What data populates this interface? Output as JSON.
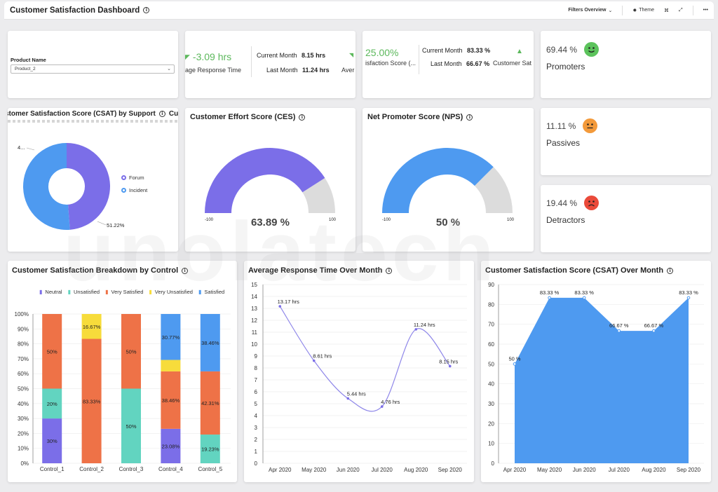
{
  "header": {
    "title": "Customer Satisfaction Dashboard",
    "filters_label": "Filters Overview",
    "theme_label": "Theme",
    "view_label": "⌘",
    "more_label": "•••"
  },
  "product": {
    "label": "Product Name",
    "value": "Product_2"
  },
  "kpi_response": {
    "change": "-3.09 hrs",
    "label": "age Response Time",
    "current_label": "Current Month",
    "current_value": "8.15 hrs",
    "last_label": "Last Month",
    "last_value": "11.24 hrs",
    "cut_label": "Aver"
  },
  "kpi_csat": {
    "change": "25.00%",
    "label": "isfaction Score (...",
    "current_label": "Current Month",
    "current_value": "83.33 %",
    "last_label": "Last Month",
    "last_value": "66.67 %",
    "cut_label": "Customer Sat"
  },
  "nps_breakdown": {
    "promoters": {
      "pct": "69.44 %",
      "label": "Promoters",
      "color": "#5cc35c"
    },
    "passives": {
      "pct": "11.11 %",
      "label": "Passives",
      "color": "#f39a3b"
    },
    "detractors": {
      "pct": "19.44 %",
      "label": "Detractors",
      "color": "#ea4a3a"
    }
  },
  "csat_support": {
    "title": "stomer Satisfaction Score (CSAT) by Support",
    "title_cut": "Cu",
    "label_top": "4...",
    "label_bottom": "51.22%",
    "legend": [
      "Forum",
      "Incident"
    ],
    "colors": [
      "#7b6ee8",
      "#4e9af0"
    ]
  },
  "ces": {
    "title": "Customer Effort Score (CES)",
    "value": "63.89 %",
    "min": "-100",
    "max": "100",
    "fraction": 0.819,
    "color": "#7b6ee8"
  },
  "nps": {
    "title": "Net Promoter Score (NPS)",
    "value": "50 %",
    "min": "-100",
    "max": "100",
    "fraction": 0.75,
    "color": "#4e9af0"
  },
  "breakdown": {
    "title": "Customer Satisfaction Breakdown by Control",
    "legend": [
      {
        "name": "Neutral",
        "color": "#7b6ee8"
      },
      {
        "name": "Unsatisfied",
        "color": "#62d4c0"
      },
      {
        "name": "Very Satisfied",
        "color": "#ee7247"
      },
      {
        "name": "Very Unsatisfied",
        "color": "#f7dc3b"
      },
      {
        "name": "Satisfied",
        "color": "#4e9af0"
      }
    ],
    "yticks": [
      "0%",
      "10%",
      "20%",
      "30%",
      "40%",
      "50%",
      "60%",
      "70%",
      "80%",
      "90%",
      "100%"
    ]
  },
  "response_over_month": {
    "title": "Average Response Time Over Month"
  },
  "csat_over_month": {
    "title": "Customer Satisfaction Score (CSAT) Over Month"
  },
  "chart_data": [
    {
      "type": "pie",
      "title": "stomer Satisfaction Score (CSAT) by Support",
      "categories": [
        "Forum",
        "Incident"
      ],
      "values": [
        48.78,
        51.22
      ]
    },
    {
      "type": "bar",
      "title": "Customer Satisfaction Breakdown by Control",
      "stacked": true,
      "categories": [
        "Control_1",
        "Control_2",
        "Control_3",
        "Control_4",
        "Control_5"
      ],
      "series": [
        {
          "name": "Neutral",
          "values": [
            30,
            0,
            0,
            23.08,
            0
          ]
        },
        {
          "name": "Unsatisfied",
          "values": [
            20,
            0,
            50,
            0,
            19.23
          ]
        },
        {
          "name": "Very Satisfied",
          "values": [
            50,
            83.33,
            50,
            38.46,
            42.31
          ]
        },
        {
          "name": "Very Unsatisfied",
          "values": [
            0,
            16.67,
            0,
            7.69,
            0
          ]
        },
        {
          "name": "Satisfied",
          "values": [
            0,
            0,
            0,
            30.77,
            38.46
          ]
        }
      ],
      "labels": [
        [
          "30%",
          "",
          "",
          "23.08%",
          ""
        ],
        [
          "20%",
          "",
          "50%",
          "",
          "19.23%"
        ],
        [
          "50%",
          "83.33%",
          "50%",
          "38.46%",
          "42.31%"
        ],
        [
          "",
          "16.67%",
          "",
          "",
          ""
        ],
        [
          "",
          "",
          "",
          "30.77%",
          "38.46%"
        ]
      ],
      "ylim": [
        0,
        100
      ]
    },
    {
      "type": "line",
      "title": "Average Response Time Over Month",
      "categories": [
        "Apr 2020",
        "May 2020",
        "Jun 2020",
        "Jul 2020",
        "Aug 2020",
        "Sep 2020"
      ],
      "values": [
        13.17,
        8.61,
        5.44,
        4.76,
        11.24,
        8.15
      ],
      "labels": [
        "13.17 hrs",
        "8.61 hrs",
        "5.44 hrs",
        "4.76 hrs",
        "11.24 hrs",
        "8.15 hrs"
      ],
      "ylim": [
        0,
        15
      ],
      "yticks": [
        0,
        1,
        2,
        3,
        4,
        5,
        6,
        7,
        8,
        9,
        10,
        11,
        12,
        13,
        14,
        15
      ]
    },
    {
      "type": "area",
      "title": "Customer Satisfaction Score (CSAT) Over Month",
      "categories": [
        "Apr 2020",
        "May 2020",
        "Jun 2020",
        "Jul 2020",
        "Aug 2020",
        "Sep 2020"
      ],
      "values": [
        50,
        83.33,
        83.33,
        66.67,
        66.67,
        83.33
      ],
      "labels": [
        "50 %",
        "83.33 %",
        "83.33 %",
        "66.67 %",
        "66.67 %",
        "83.33 %"
      ],
      "ylim": [
        0,
        90
      ],
      "yticks": [
        0,
        10,
        20,
        30,
        40,
        50,
        60,
        70,
        80,
        90
      ]
    }
  ]
}
